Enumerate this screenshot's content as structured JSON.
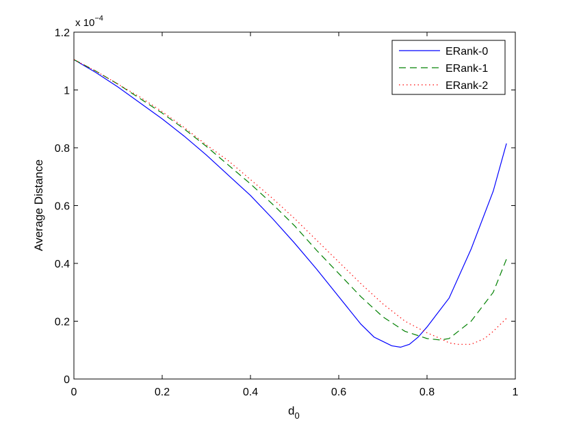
{
  "chart_data": {
    "type": "line",
    "title": "",
    "xlabel_main": "d",
    "xlabel_sub": "0",
    "ylabel": "Average Distance",
    "y_multiplier_base": "x 10",
    "y_multiplier_exp": "−4",
    "xlim": [
      0,
      1
    ],
    "ylim": [
      0,
      1.2
    ],
    "x_ticks": [
      0,
      0.2,
      0.4,
      0.6,
      0.8,
      1
    ],
    "x_tick_labels": [
      "0",
      "0.2",
      "0.4",
      "0.6",
      "0.8",
      "1"
    ],
    "y_ticks": [
      0,
      0.2,
      0.4,
      0.6,
      0.8,
      1,
      1.2
    ],
    "y_tick_labels": [
      "0",
      "0.2",
      "0.4",
      "0.6",
      "0.8",
      "1",
      "1.2"
    ],
    "grid": false,
    "legend_position": "top-right",
    "series": [
      {
        "name": "ERank-0",
        "color": "#0000ff",
        "style": "solid",
        "x": [
          0,
          0.05,
          0.1,
          0.15,
          0.2,
          0.25,
          0.3,
          0.35,
          0.4,
          0.45,
          0.5,
          0.55,
          0.6,
          0.65,
          0.68,
          0.7,
          0.72,
          0.74,
          0.76,
          0.78,
          0.8,
          0.85,
          0.9,
          0.95,
          0.98
        ],
        "y": [
          1.105,
          1.06,
          1.01,
          0.955,
          0.9,
          0.84,
          0.775,
          0.705,
          0.635,
          0.555,
          0.47,
          0.38,
          0.285,
          0.19,
          0.145,
          0.13,
          0.115,
          0.11,
          0.12,
          0.145,
          0.18,
          0.28,
          0.45,
          0.65,
          0.815
        ]
      },
      {
        "name": "ERank-1",
        "color": "#008000",
        "style": "dashed",
        "x": [
          0,
          0.05,
          0.1,
          0.15,
          0.2,
          0.25,
          0.3,
          0.35,
          0.4,
          0.45,
          0.5,
          0.55,
          0.6,
          0.65,
          0.7,
          0.75,
          0.78,
          0.8,
          0.83,
          0.85,
          0.9,
          0.95,
          0.98
        ],
        "y": [
          1.105,
          1.065,
          1.02,
          0.97,
          0.92,
          0.865,
          0.805,
          0.74,
          0.675,
          0.605,
          0.53,
          0.445,
          0.365,
          0.285,
          0.215,
          0.165,
          0.15,
          0.14,
          0.135,
          0.14,
          0.2,
          0.3,
          0.415
        ]
      },
      {
        "name": "ERank-2",
        "color": "#ff0000",
        "style": "dotted",
        "x": [
          0,
          0.05,
          0.1,
          0.15,
          0.2,
          0.25,
          0.3,
          0.35,
          0.4,
          0.45,
          0.5,
          0.55,
          0.6,
          0.65,
          0.7,
          0.75,
          0.8,
          0.83,
          0.85,
          0.87,
          0.9,
          0.93,
          0.95,
          0.98
        ],
        "y": [
          1.105,
          1.065,
          1.02,
          0.975,
          0.925,
          0.87,
          0.81,
          0.755,
          0.69,
          0.625,
          0.555,
          0.48,
          0.405,
          0.33,
          0.26,
          0.2,
          0.16,
          0.14,
          0.125,
          0.12,
          0.12,
          0.14,
          0.165,
          0.21
        ]
      }
    ]
  }
}
